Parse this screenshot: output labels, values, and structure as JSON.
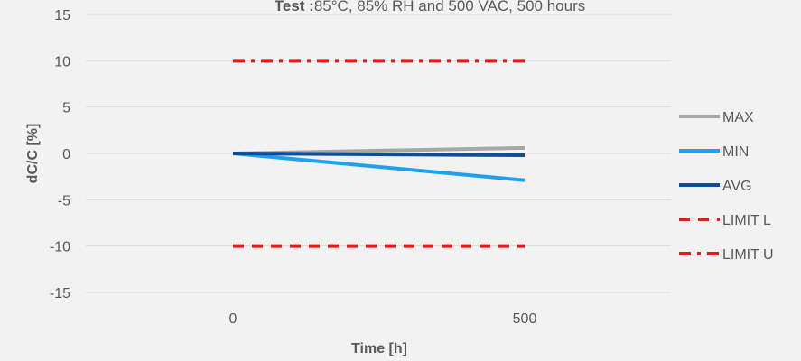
{
  "chart_data": {
    "type": "line",
    "title_bold": "Test :",
    "title_rest": "85°C, 85% RH and 500 VAC, 500 hours",
    "xlabel": "Time [h]",
    "ylabel": "dC/C [%]",
    "x": [
      0,
      500
    ],
    "x_ticks": [
      "0",
      "500"
    ],
    "ylim": [
      -15,
      15
    ],
    "y_ticks": [
      15,
      10,
      5,
      0,
      -5,
      -10,
      -15
    ],
    "grid": true,
    "legend_position": "right",
    "series": [
      {
        "name": "MAX",
        "values": [
          0,
          0.6
        ],
        "color": "#a6a6a6",
        "dash": "solid"
      },
      {
        "name": "MIN",
        "values": [
          0,
          -2.9
        ],
        "color": "#1fa2ee",
        "dash": "solid"
      },
      {
        "name": "AVG",
        "values": [
          0,
          -0.2
        ],
        "color": "#0f4c93",
        "dash": "solid"
      },
      {
        "name": "LIMIT L",
        "values": [
          -10,
          -10
        ],
        "color": "#e01b1b",
        "dash": "dash"
      },
      {
        "name": "LIMIT U",
        "values": [
          10,
          10
        ],
        "color": "#e01b1b",
        "dash": "dashdot"
      }
    ]
  }
}
